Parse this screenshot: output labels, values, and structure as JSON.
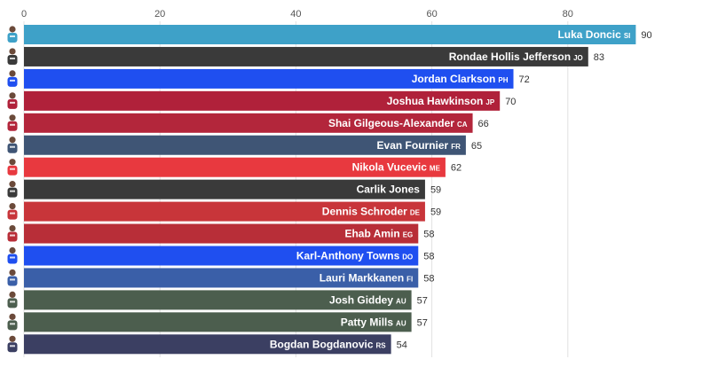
{
  "chart_data": {
    "type": "bar",
    "orientation": "horizontal",
    "xlim": [
      0,
      90
    ],
    "x_ticks": [
      0,
      20,
      40,
      60,
      80
    ],
    "grid": true,
    "bars": [
      {
        "name": "Luka Doncic",
        "code": "SI",
        "value": 90,
        "color": "#3ea1c8",
        "icon": "player-avatar-icon"
      },
      {
        "name": "Rondae Hollis Jefferson",
        "code": "JO",
        "value": 83,
        "color": "#3a3a3a",
        "icon": "player-avatar-icon"
      },
      {
        "name": "Jordan Clarkson",
        "code": "PH",
        "value": 72,
        "color": "#1f4ff0",
        "icon": "player-avatar-icon"
      },
      {
        "name": "Joshua Hawkinson",
        "code": "JP",
        "value": 70,
        "color": "#b0213a",
        "icon": "player-avatar-icon"
      },
      {
        "name": "Shai Gilgeous-Alexander",
        "code": "CA",
        "value": 66,
        "color": "#b3263b",
        "icon": "player-avatar-icon"
      },
      {
        "name": "Evan Fournier",
        "code": "FR",
        "value": 65,
        "color": "#3f5575",
        "icon": "player-avatar-icon"
      },
      {
        "name": "Nikola Vucevic",
        "code": "ME",
        "value": 62,
        "color": "#e8393f",
        "icon": "player-avatar-icon"
      },
      {
        "name": "Carlik Jones",
        "code": "",
        "value": 59,
        "color": "#3a3a3a",
        "icon": "player-avatar-icon"
      },
      {
        "name": "Dennis Schroder",
        "code": "DE",
        "value": 59,
        "color": "#c8353a",
        "icon": "player-avatar-icon"
      },
      {
        "name": "Ehab Amin",
        "code": "EG",
        "value": 58,
        "color": "#b82e38",
        "icon": "player-avatar-icon"
      },
      {
        "name": "Karl-Anthony Towns",
        "code": "DO",
        "value": 58,
        "color": "#1f4ff0",
        "icon": "player-avatar-icon"
      },
      {
        "name": "Lauri Markkanen",
        "code": "FI",
        "value": 58,
        "color": "#3a5fa8",
        "icon": "player-avatar-icon"
      },
      {
        "name": "Josh Giddey",
        "code": "AU",
        "value": 57,
        "color": "#4c5e4e",
        "icon": "player-avatar-icon"
      },
      {
        "name": "Patty Mills",
        "code": "AU",
        "value": 57,
        "color": "#4c5e4e",
        "icon": "player-avatar-icon"
      },
      {
        "name": "Bogdan Bogdanovic",
        "code": "RS",
        "value": 54,
        "color": "#3b3f62",
        "icon": "player-avatar-icon"
      }
    ]
  }
}
